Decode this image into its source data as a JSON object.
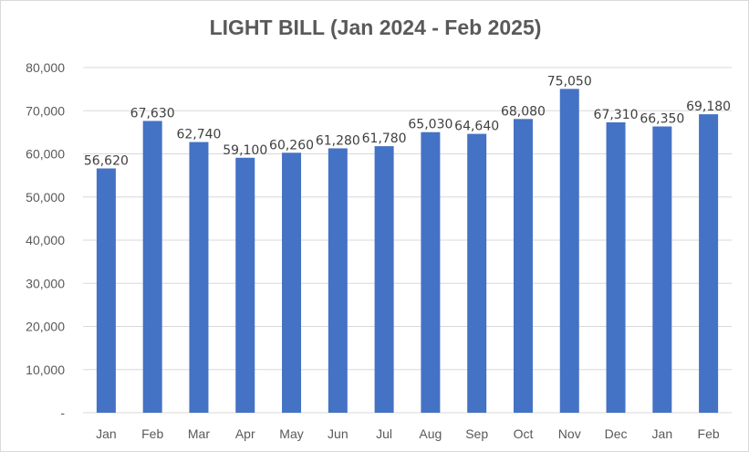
{
  "chart_data": {
    "type": "bar",
    "title": "LIGHT BILL (Jan 2024 - Feb 2025)",
    "xlabel": "",
    "ylabel": "",
    "categories": [
      "Jan",
      "Feb",
      "Mar",
      "Apr",
      "May",
      "Jun",
      "Jul",
      "Aug",
      "Sep",
      "Oct",
      "Nov",
      "Dec",
      "Jan",
      "Feb"
    ],
    "values": [
      56620,
      67630,
      62740,
      59100,
      60260,
      61280,
      61780,
      65030,
      64640,
      68080,
      75050,
      67310,
      66350,
      69180
    ],
    "data_labels": [
      "56,620",
      "67,630",
      "62,740",
      "59,100",
      "60,260",
      "61,280",
      "61,780",
      "65,030",
      "64,640",
      "68,080",
      "75,050",
      "67,310",
      "66,350",
      "69,180"
    ],
    "y_ticks": [
      0,
      10000,
      20000,
      30000,
      40000,
      50000,
      60000,
      70000,
      80000
    ],
    "y_tick_labels": [
      "-",
      "10,000",
      "20,000",
      "30,000",
      "40,000",
      "50,000",
      "60,000",
      "70,000",
      "80,000"
    ],
    "ylim": [
      0,
      80000
    ],
    "grid": true,
    "legend": "none",
    "colors": {
      "bar": "#4472c4",
      "grid": "#d9d9d9",
      "axis_text": "#595959",
      "label_text": "#404040"
    }
  }
}
